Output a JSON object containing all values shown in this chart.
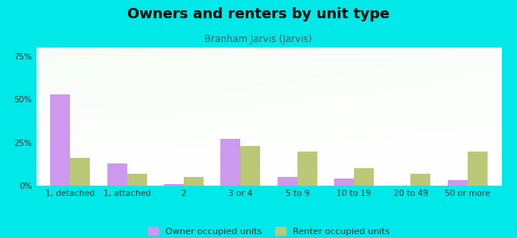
{
  "title": "Owners and renters by unit type",
  "subtitle": "Branham Jarvis (Jarvis)",
  "categories": [
    "1, detached",
    "1, attached",
    "2",
    "3 or 4",
    "5 to 9",
    "10 to 19",
    "20 to 49",
    "50 or more"
  ],
  "owner_values": [
    53,
    13,
    1,
    27,
    5,
    4,
    0,
    3
  ],
  "renter_values": [
    16,
    7,
    5,
    23,
    20,
    10,
    7,
    20
  ],
  "owner_color": "#cc99ee",
  "renter_color": "#bbc878",
  "background_color": "#00e8e8",
  "ylim": [
    0,
    80
  ],
  "yticks": [
    0,
    25,
    50,
    75
  ],
  "ytick_labels": [
    "0%",
    "25%",
    "50%",
    "75%"
  ],
  "owner_label": "Owner occupied units",
  "renter_label": "Renter occupied units",
  "bar_width": 0.35,
  "title_fontsize": 13,
  "subtitle_fontsize": 8.5,
  "tick_fontsize": 7.5
}
